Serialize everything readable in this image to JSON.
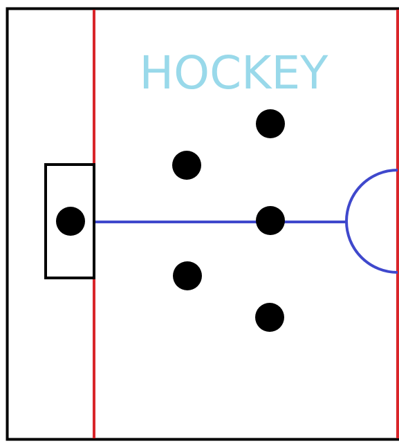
{
  "diagram": {
    "title": "HOCKEY",
    "colors": {
      "background": "#ffffff",
      "frame": "#000000",
      "red_line": "#d9252a",
      "blue_line": "#3f48cc",
      "title": "#99d9ea",
      "player": "#000000"
    },
    "players": [
      {
        "id": "goalie"
      },
      {
        "id": "player-upper-left"
      },
      {
        "id": "player-top-right"
      },
      {
        "id": "player-center"
      },
      {
        "id": "player-lower-left"
      },
      {
        "id": "player-bottom-right"
      }
    ]
  }
}
